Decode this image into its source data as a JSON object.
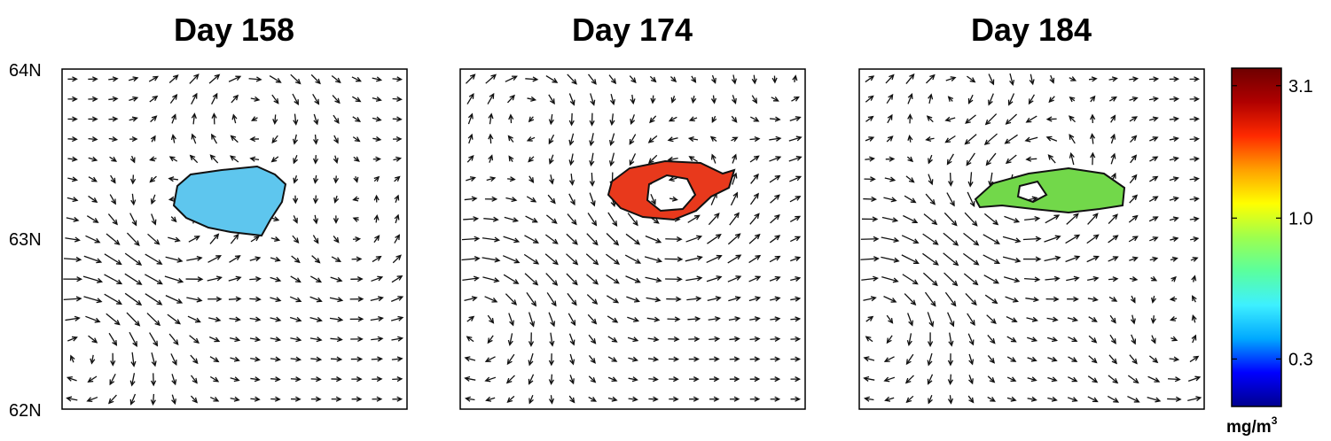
{
  "chart_data": {
    "type": "vector-field-map",
    "panels": [
      {
        "title": "Day 158",
        "patch_value_mg_m3": 0.45,
        "patch_color": "#5ec6ee"
      },
      {
        "title": "Day 174",
        "patch_value_mg_m3": 3.0,
        "patch_color": "#e8391c"
      },
      {
        "title": "Day 184",
        "patch_value_mg_m3": 1.2,
        "patch_color": "#72d84a"
      }
    ],
    "y_axis": {
      "ticks": [
        "64N",
        "63N",
        "62N"
      ],
      "values": [
        64,
        63,
        62
      ],
      "ylim": [
        62,
        64
      ]
    },
    "colorbar": {
      "unit": "mg/m",
      "unit_superscript": "3",
      "scale": "log",
      "range": [
        0.2,
        3.6
      ],
      "ticks": [
        "3.1",
        "1.0",
        "0.3"
      ],
      "tick_values": [
        3.1,
        1.0,
        0.3
      ],
      "colormap": [
        "#00008f",
        "#0000ff",
        "#00a8ff",
        "#3ef0ff",
        "#5aff9e",
        "#9dff4e",
        "#ffff00",
        "#ffa000",
        "#ff2a00",
        "#b00000",
        "#6e0000"
      ]
    }
  }
}
